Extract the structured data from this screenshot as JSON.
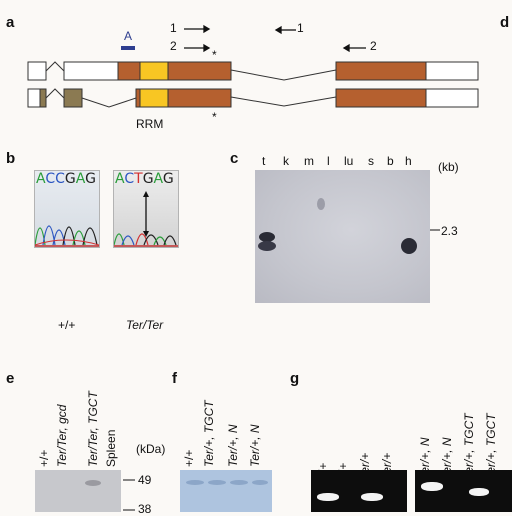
{
  "panels": {
    "a": "a",
    "b": "b",
    "c": "c",
    "d": "d",
    "e": "e",
    "f": "f",
    "g": "g"
  },
  "panel_a": {
    "probe_label": "A",
    "primer_1_fwd": "1",
    "primer_1_rev": "1",
    "primer_2_fwd": "2",
    "primer_2_rev": "2",
    "star": "*",
    "domain_label": "RRM",
    "colors": {
      "exon_brown": "#b5602f",
      "rrm_yellow": "#f8c623",
      "probe_blue": "#2e3e8f",
      "alt_exon_olive": "#8b7a52"
    }
  },
  "panel_b": {
    "seq_wt": [
      {
        "ch": "A",
        "color": "#2a9d3a"
      },
      {
        "ch": "C",
        "color": "#2d57c2"
      },
      {
        "ch": "C",
        "color": "#2d57c2"
      },
      {
        "ch": "G",
        "color": "#222222"
      },
      {
        "ch": "A",
        "color": "#2a9d3a"
      },
      {
        "ch": "G",
        "color": "#222222"
      }
    ],
    "seq_ter": [
      {
        "ch": "A",
        "color": "#2a9d3a"
      },
      {
        "ch": "C",
        "color": "#2d57c2"
      },
      {
        "ch": "T",
        "color": "#d23030"
      },
      {
        "ch": "G",
        "color": "#222222"
      },
      {
        "ch": "A",
        "color": "#2a9d3a"
      },
      {
        "ch": "G",
        "color": "#222222"
      }
    ],
    "label_wt": "+/+",
    "label_ter": "Ter/Ter"
  },
  "panel_c": {
    "lanes": [
      "t",
      "k",
      "m",
      "l",
      "lu",
      "s",
      "b",
      "h"
    ],
    "unit": "(kb)",
    "marker": "2.3"
  },
  "panel_e": {
    "lanes": [
      "+/+",
      "Ter/Ter, gcd",
      "Ter/Ter, TGCT",
      "Spleen"
    ],
    "unit": "(kDa)",
    "marker_49": "49",
    "marker_38": "38"
  },
  "panel_f": {
    "lanes": [
      "+/+",
      "Ter/+, TGCT",
      "Ter/+, N",
      "Ter/+, N"
    ]
  },
  "panel_g": {
    "lanes_left": [
      "+/+",
      "+/+",
      "Ter/+",
      "Ter/+"
    ],
    "lanes_right": [
      "Ter/+, N",
      "Ter/+, N",
      "Ter/+, TGCT",
      "Ter/+, TGCT"
    ]
  }
}
